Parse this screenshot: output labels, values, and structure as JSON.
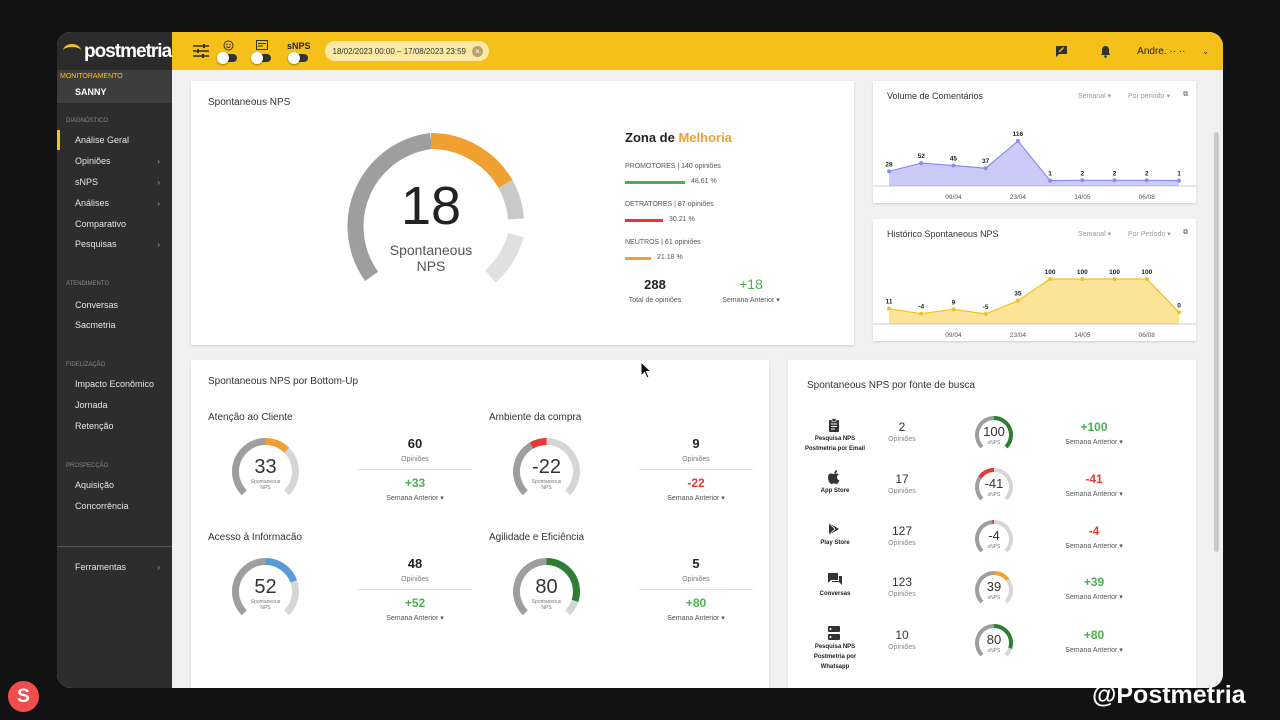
{
  "topbar": {
    "logo": "postmetria",
    "toggle_snps_label": "sNPS",
    "date_range": "18/02/2023 00:00 – 17/08/2023 23:59",
    "user": "Andre. ·· ··"
  },
  "sidebar": {
    "monitoring_label": "MONITORAMENTO",
    "client": "SANNY",
    "sections": [
      "DIAGNÓSTICO",
      "ATENDIMENTO",
      "FIDELIZAÇÃO",
      "PROSPECÇÃO"
    ],
    "items": [
      "Análise Geral",
      "Opiniões",
      "sNPS",
      "Análises",
      "Comparativo",
      "Pesquisas",
      "Conversas",
      "Sacmetria",
      "Impacto Econômico",
      "Jornada",
      "Retenção",
      "Aquisição",
      "Concorrência",
      "Ferramentas"
    ]
  },
  "snps_card": {
    "title": "Spontaneous NPS",
    "score": "18",
    "score_label": "Spontaneous NPS",
    "zone_prefix": "Zona de ",
    "zone": "Melhoria",
    "promoters": {
      "label": "PROMOTORES | 140 opiniões",
      "pct": "48.61 %",
      "value": 48.61,
      "color": "#4caf50"
    },
    "detractors": {
      "label": "DETRATORES | 87 opiniões",
      "pct": "30.21 %",
      "value": 30.21,
      "color": "#e53935"
    },
    "neutrals": {
      "label": "NEUTROS | 61 opiniões",
      "pct": "21.18 %",
      "value": 21.18,
      "color": "#f0a030"
    },
    "total": "288",
    "total_label": "Total de opiniões",
    "delta": "+18",
    "delta_label": "Semana Anterior ▾"
  },
  "volume_chart": {
    "title": "Volume de Comentários",
    "ctrl1": "Semanal",
    "ctrl2": "Por período",
    "color": "#8c8cf0"
  },
  "historico_chart": {
    "title": "Histórico Spontaneous NPS",
    "ctrl1": "Semanal",
    "ctrl2": "Por Período",
    "color": "#f6c01b"
  },
  "chart_data": [
    {
      "type": "area",
      "title": "Volume de Comentários",
      "x": [
        "",
        "",
        "",
        "",
        "",
        "",
        "",
        "",
        "",
        ""
      ],
      "xticks": [
        "09/04",
        "23/04",
        "14/05",
        "06/08"
      ],
      "values": [
        28,
        52,
        45,
        37,
        116,
        1,
        2,
        2,
        2,
        1
      ]
    },
    {
      "type": "area",
      "title": "Histórico Spontaneous NPS",
      "x": [
        "",
        "",
        "",
        "",
        "",
        "",
        "",
        "",
        "",
        ""
      ],
      "xticks": [
        "09/04",
        "23/04",
        "14/05",
        "06/08"
      ],
      "values": [
        11,
        -4,
        9,
        -5,
        35,
        100,
        100,
        100,
        100,
        0
      ]
    }
  ],
  "bottom_up": {
    "title": "Spontaneous NPS por Bottom-Up",
    "gauge_sub": "Spontaneous NPS",
    "opinions_label": "Opiniões",
    "cmp_label": "Semana Anterior ▾",
    "items": [
      {
        "name": "Atenção ao Cliente",
        "score": "33",
        "opinions": "60",
        "delta": "+33",
        "color": "#f0a030",
        "fill": 0.33
      },
      {
        "name": "Ambiente da compra",
        "score": "-22",
        "opinions": "9",
        "delta": "-22",
        "color": "#e53935",
        "fill": -0.22
      },
      {
        "name": "Acesso à Informacão",
        "score": "52",
        "opinions": "48",
        "delta": "+52",
        "color": "#5b9bd5",
        "fill": 0.52
      },
      {
        "name": "Agilidade e Eficiência",
        "score": "80",
        "opinions": "5",
        "delta": "+80",
        "color": "#2e7d32",
        "fill": 0.8
      }
    ]
  },
  "sources": {
    "title": "Spontaneous NPS por fonte de busca",
    "opinions_label": "Opiniões",
    "gauge_sub": "sNPS",
    "cmp_label": "Semana Anterior ▾",
    "items": [
      {
        "name": "Pesquisa NPS Postmetria por Email",
        "icon": "clipboard-icon",
        "count": "2",
        "score": "100",
        "delta": "+100",
        "color": "#2e7d32",
        "fill": 1.0
      },
      {
        "name": "App Store",
        "icon": "apple-icon",
        "count": "17",
        "score": "-41",
        "delta": "-41",
        "color": "#e53935",
        "fill": -0.41
      },
      {
        "name": "Play Store",
        "icon": "play-store-icon",
        "count": "127",
        "score": "-4",
        "delta": "-4",
        "color": "#e53935",
        "fill": -0.04
      },
      {
        "name": "Conversas",
        "icon": "chat-icon",
        "count": "123",
        "score": "39",
        "delta": "+39",
        "color": "#f0a030",
        "fill": 0.39
      },
      {
        "name": "Pesquisa NPS Postmetria por Whatsapp",
        "icon": "server-icon",
        "count": "10",
        "score": "80",
        "delta": "+80",
        "color": "#2e7d32",
        "fill": 0.8
      }
    ]
  },
  "watermark": "@Postmetria",
  "badge": "S"
}
